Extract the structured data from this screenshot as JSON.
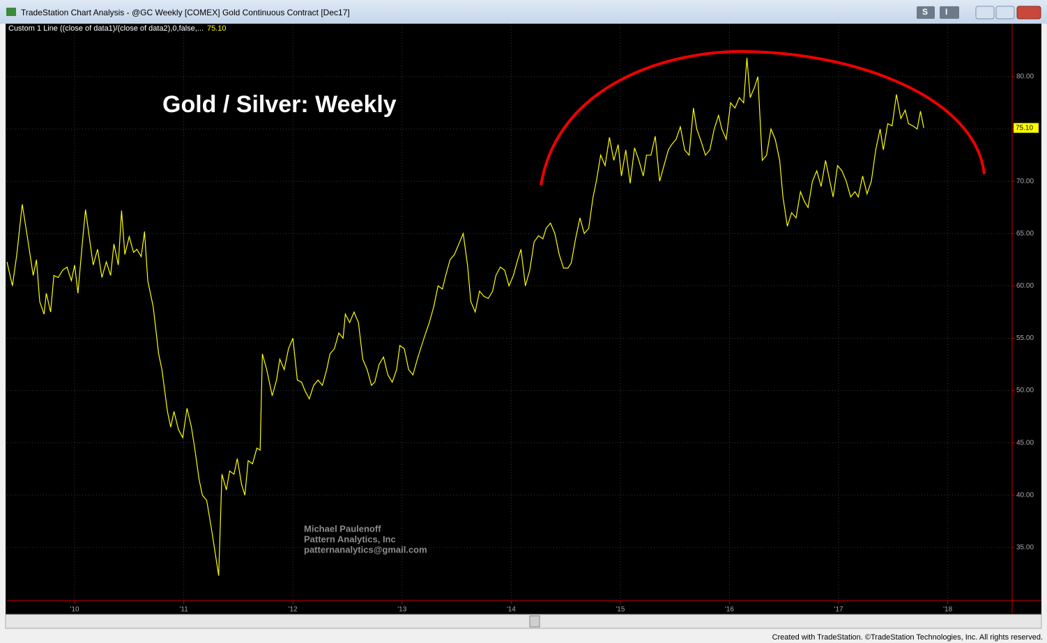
{
  "window": {
    "title": "TradeStation Chart Analysis - @GC Weekly [COMEX] Gold Continuous Contract [Dec17]",
    "buttons": [
      "S",
      "I"
    ],
    "footer": "Created with TradeStation. ©TradeStation Technologies, Inc. All rights reserved."
  },
  "chart_data": {
    "type": "line",
    "title": "Gold / Silver: Weekly",
    "annotations": [
      "Michael Paulenoff",
      "Pattern Analytics, Inc",
      "patternanalytics@gmail.com"
    ],
    "last_value": 75.1,
    "last_value_label": "75.10",
    "xlim": [
      2009.38,
      2018.59
    ],
    "ylim": [
      29.93,
      84.13
    ],
    "xticks": [
      {
        "value": 2010,
        "label": "'10"
      },
      {
        "value": 2011,
        "label": "'11"
      },
      {
        "value": 2012,
        "label": "'12"
      },
      {
        "value": 2013,
        "label": "'13"
      },
      {
        "value": 2014,
        "label": "'14"
      },
      {
        "value": 2015,
        "label": "'15"
      },
      {
        "value": 2016,
        "label": "'16"
      },
      {
        "value": 2017,
        "label": "'17"
      },
      {
        "value": 2018,
        "label": "'18"
      }
    ],
    "yticks": [
      {
        "value": 35,
        "label": "35.00"
      },
      {
        "value": 40,
        "label": "40.00"
      },
      {
        "value": 45,
        "label": "45.00"
      },
      {
        "value": 50,
        "label": "50.00"
      },
      {
        "value": 55,
        "label": "55.00"
      },
      {
        "value": 60,
        "label": "60.00"
      },
      {
        "value": 65,
        "label": "65.00"
      },
      {
        "value": 70,
        "label": "70.00"
      },
      {
        "value": 75,
        "label": "75.00"
      },
      {
        "value": 80,
        "label": "80.00"
      }
    ],
    "grid": true,
    "x": [
      2009.38,
      2009.43,
      2009.47,
      2009.52,
      2009.57,
      2009.62,
      2009.65,
      2009.68,
      2009.72,
      2009.74,
      2009.78,
      2009.81,
      2009.85,
      2009.89,
      2009.93,
      2009.97,
      2010.0,
      2010.03,
      2010.07,
      2010.1,
      2010.13,
      2010.17,
      2010.21,
      2010.25,
      2010.29,
      2010.33,
      2010.36,
      2010.4,
      2010.43,
      2010.46,
      2010.5,
      2010.54,
      2010.57,
      2010.61,
      2010.64,
      2010.67,
      2010.72,
      2010.77,
      2010.8,
      2010.85,
      2010.88,
      2010.91,
      2010.95,
      2010.99,
      2011.03,
      2011.07,
      2011.1,
      2011.14,
      2011.17,
      2011.21,
      2011.25,
      2011.28,
      2011.32,
      2011.35,
      2011.39,
      2011.42,
      2011.46,
      2011.49,
      2011.53,
      2011.56,
      2011.59,
      2011.63,
      2011.67,
      2011.7,
      2011.72,
      2011.76,
      2011.81,
      2011.85,
      2011.88,
      2011.92,
      2011.96,
      2012.0,
      2012.04,
      2012.08,
      2012.11,
      2012.15,
      2012.19,
      2012.23,
      2012.27,
      2012.31,
      2012.34,
      2012.38,
      2012.42,
      2012.46,
      2012.48,
      2012.52,
      2012.56,
      2012.6,
      2012.64,
      2012.68,
      2012.72,
      2012.75,
      2012.79,
      2012.83,
      2012.87,
      2012.91,
      2012.95,
      2012.98,
      2013.02,
      2013.06,
      2013.1,
      2013.14,
      2013.17,
      2013.21,
      2013.25,
      2013.29,
      2013.33,
      2013.37,
      2013.4,
      2013.44,
      2013.48,
      2013.52,
      2013.56,
      2013.6,
      2013.63,
      2013.67,
      2013.71,
      2013.75,
      2013.79,
      2013.83,
      2013.86,
      2013.9,
      2013.94,
      2013.98,
      2014.02,
      2014.06,
      2014.09,
      2014.13,
      2014.17,
      2014.21,
      2014.25,
      2014.29,
      2014.32,
      2014.36,
      2014.4,
      2014.44,
      2014.48,
      2014.52,
      2014.55,
      2014.59,
      2014.63,
      2014.67,
      2014.71,
      2014.75,
      2014.78,
      2014.82,
      2014.86,
      2014.9,
      2014.94,
      2014.98,
      2015.01,
      2015.05,
      2015.09,
      2015.13,
      2015.17,
      2015.21,
      2015.24,
      2015.28,
      2015.32,
      2015.36,
      2015.4,
      2015.44,
      2015.47,
      2015.51,
      2015.55,
      2015.59,
      2015.63,
      2015.67,
      2015.7,
      2015.74,
      2015.78,
      2015.82,
      2015.86,
      2015.9,
      2015.93,
      2015.97,
      2016.01,
      2016.05,
      2016.09,
      2016.13,
      2016.16,
      2016.19,
      2016.23,
      2016.26,
      2016.3,
      2016.34,
      2016.38,
      2016.42,
      2016.46,
      2016.49,
      2016.53,
      2016.57,
      2016.61,
      2016.65,
      2016.69,
      2016.72,
      2016.76,
      2016.8,
      2016.84,
      2016.88,
      2016.92,
      2016.95,
      2016.99,
      2017.03,
      2017.07,
      2017.11,
      2017.15,
      2017.18,
      2017.22,
      2017.26,
      2017.3,
      2017.34,
      2017.38,
      2017.41,
      2017.45,
      2017.49,
      2017.53,
      2017.57,
      2017.61,
      2017.64,
      2017.68,
      2017.72,
      2017.75,
      2017.78
    ],
    "series": [
      {
        "name": "Custom 1 Line ((close of data1)/(close of data2),0,false,...",
        "color": "#ffff00",
        "values": [
          62.3,
          60,
          63,
          67.8,
          64.5,
          61,
          62.5,
          58.5,
          57.3,
          59.3,
          57.5,
          61,
          60.8,
          61.5,
          61.8,
          60.5,
          62,
          59.3,
          64,
          67.3,
          65,
          62,
          63.5,
          60.8,
          62.3,
          61,
          64,
          62,
          67.2,
          63,
          64.7,
          63.2,
          63.5,
          62.8,
          65.2,
          60.5,
          58,
          53.5,
          52,
          48,
          46.5,
          48,
          46.3,
          45.5,
          48.3,
          46.5,
          44.5,
          41.5,
          40,
          39.5,
          37,
          35,
          32.3,
          42,
          40.5,
          42.3,
          42,
          43.5,
          41,
          40,
          43.3,
          43,
          44.5,
          44.3,
          53.5,
          52,
          49.5,
          51,
          53,
          52,
          54,
          55,
          51,
          50.8,
          50,
          49.2,
          50.5,
          51,
          50.5,
          52,
          53.5,
          54,
          55.5,
          55,
          57.3,
          56.5,
          57.5,
          56.5,
          53,
          52,
          50.5,
          50.8,
          52.5,
          53.2,
          51.5,
          50.8,
          52,
          54.3,
          54,
          52,
          51.5,
          53,
          54,
          55.3,
          56.5,
          58,
          60,
          59.7,
          61,
          62.5,
          63,
          64,
          65,
          62,
          58.5,
          57.5,
          59.5,
          59,
          58.8,
          59.5,
          61,
          61.8,
          61.5,
          60,
          61,
          62.5,
          63.5,
          60,
          61.5,
          64.2,
          64.8,
          64.5,
          65.5,
          66,
          65,
          63,
          61.7,
          61.7,
          62.2,
          64.5,
          66.5,
          65,
          65.5,
          68.5,
          70,
          72.5,
          71.5,
          74.2,
          72,
          73.5,
          70.5,
          73,
          69.8,
          73.2,
          72,
          70.5,
          72.5,
          72.5,
          74.3,
          70,
          71.5,
          73,
          73.5,
          74,
          75.2,
          73,
          72.5,
          77,
          75,
          73.8,
          72.5,
          73,
          75,
          76.3,
          75,
          74,
          77.5,
          77,
          78,
          77.5,
          81.8,
          78,
          79,
          80,
          72,
          72.5,
          75,
          74,
          72,
          68.5,
          65.7,
          67,
          66.5,
          69,
          68,
          67.5,
          70,
          71,
          69.5,
          72,
          70,
          68.5,
          71.5,
          71,
          70,
          68.5,
          69,
          68.5,
          70.5,
          68.8,
          70,
          73,
          75,
          73,
          75.5,
          75.3,
          78.3,
          76,
          76.8,
          75.5,
          75.3,
          75,
          76.7,
          75.1
        ]
      }
    ]
  }
}
